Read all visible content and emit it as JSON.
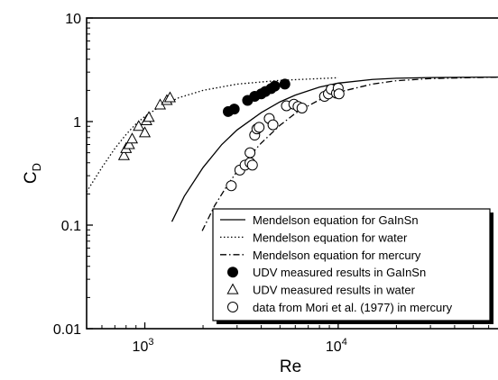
{
  "chart_data": {
    "type": "scatter",
    "xscale": "log",
    "yscale": "log",
    "xlim": [
      500,
      70000
    ],
    "ylim": [
      0.01,
      10
    ],
    "xlabel": "Re",
    "ylabel": {
      "main": "C",
      "sub": "D"
    },
    "xticks": [
      {
        "value": 1000,
        "base": "10",
        "exp": "3"
      },
      {
        "value": 10000,
        "base": "10",
        "exp": "4"
      }
    ],
    "yticks": [
      {
        "value": 0.01,
        "label": "0.01"
      },
      {
        "value": 0.1,
        "label": "0.1"
      },
      {
        "value": 1,
        "label": "1"
      },
      {
        "value": 10,
        "label": "10"
      }
    ],
    "grid": false,
    "legend_position": "bottom-right",
    "series": [
      {
        "name": "Mendelson equation for GaInSn",
        "kind": "line",
        "dash": "solid",
        "points": [
          [
            1380,
            0.108
          ],
          [
            1600,
            0.19
          ],
          [
            2000,
            0.36
          ],
          [
            2500,
            0.6
          ],
          [
            3000,
            0.83
          ],
          [
            4000,
            1.22
          ],
          [
            5000,
            1.55
          ],
          [
            6000,
            1.8
          ],
          [
            8000,
            2.15
          ],
          [
            10000,
            2.35
          ],
          [
            15000,
            2.55
          ],
          [
            20000,
            2.62
          ],
          [
            30000,
            2.66
          ],
          [
            50000,
            2.68
          ],
          [
            70000,
            2.69
          ]
        ]
      },
      {
        "name": "Mendelson equation for water",
        "kind": "line",
        "dash": "dotted",
        "points": [
          [
            500,
            0.21
          ],
          [
            600,
            0.36
          ],
          [
            700,
            0.55
          ],
          [
            800,
            0.75
          ],
          [
            900,
            0.95
          ],
          [
            1000,
            1.12
          ],
          [
            1200,
            1.4
          ],
          [
            1500,
            1.7
          ],
          [
            2000,
            2.0
          ],
          [
            3000,
            2.3
          ],
          [
            5000,
            2.5
          ],
          [
            8000,
            2.6
          ],
          [
            10000,
            2.65
          ]
        ]
      },
      {
        "name": "Mendelson equation for mercury",
        "kind": "line",
        "dash": "dashdot",
        "points": [
          [
            1980,
            0.088
          ],
          [
            2300,
            0.155
          ],
          [
            2700,
            0.25
          ],
          [
            3000,
            0.33
          ],
          [
            3500,
            0.47
          ],
          [
            4000,
            0.62
          ],
          [
            5000,
            0.92
          ],
          [
            6000,
            1.2
          ],
          [
            7000,
            1.42
          ],
          [
            8000,
            1.62
          ],
          [
            10000,
            1.92
          ],
          [
            15000,
            2.3
          ],
          [
            20000,
            2.48
          ],
          [
            30000,
            2.6
          ],
          [
            50000,
            2.66
          ],
          [
            70000,
            2.69
          ]
        ]
      },
      {
        "name": "UDV measured results in GaInSn",
        "kind": "marker",
        "marker": "filled-circle",
        "points": [
          [
            2700,
            1.25
          ],
          [
            2900,
            1.32
          ],
          [
            3400,
            1.6
          ],
          [
            3700,
            1.75
          ],
          [
            4000,
            1.85
          ],
          [
            4200,
            1.95
          ],
          [
            4500,
            2.08
          ],
          [
            4700,
            2.2
          ],
          [
            5300,
            2.3
          ]
        ]
      },
      {
        "name": "UDV measured results in water",
        "kind": "marker",
        "marker": "open-triangle",
        "points": [
          [
            780,
            0.47
          ],
          [
            800,
            0.55
          ],
          [
            830,
            0.6
          ],
          [
            860,
            0.68
          ],
          [
            930,
            0.9
          ],
          [
            1000,
            0.78
          ],
          [
            1020,
            1.02
          ],
          [
            1050,
            1.1
          ],
          [
            1200,
            1.45
          ],
          [
            1300,
            1.6
          ],
          [
            1350,
            1.7
          ]
        ]
      },
      {
        "name": "data from Mori et al.  (1977) in mercury",
        "kind": "marker",
        "marker": "open-circle",
        "points": [
          [
            2800,
            0.24
          ],
          [
            3100,
            0.34
          ],
          [
            3300,
            0.38
          ],
          [
            3500,
            0.4
          ],
          [
            3500,
            0.5
          ],
          [
            3600,
            0.38
          ],
          [
            3700,
            0.74
          ],
          [
            3800,
            0.85
          ],
          [
            3900,
            0.88
          ],
          [
            4400,
            1.07
          ],
          [
            4600,
            0.93
          ],
          [
            5400,
            1.42
          ],
          [
            5900,
            1.47
          ],
          [
            6200,
            1.4
          ],
          [
            6500,
            1.35
          ],
          [
            8500,
            1.75
          ],
          [
            8900,
            1.85
          ],
          [
            9200,
            2.05
          ],
          [
            9800,
            1.88
          ],
          [
            10000,
            2.1
          ],
          [
            10100,
            1.85
          ]
        ]
      }
    ]
  }
}
